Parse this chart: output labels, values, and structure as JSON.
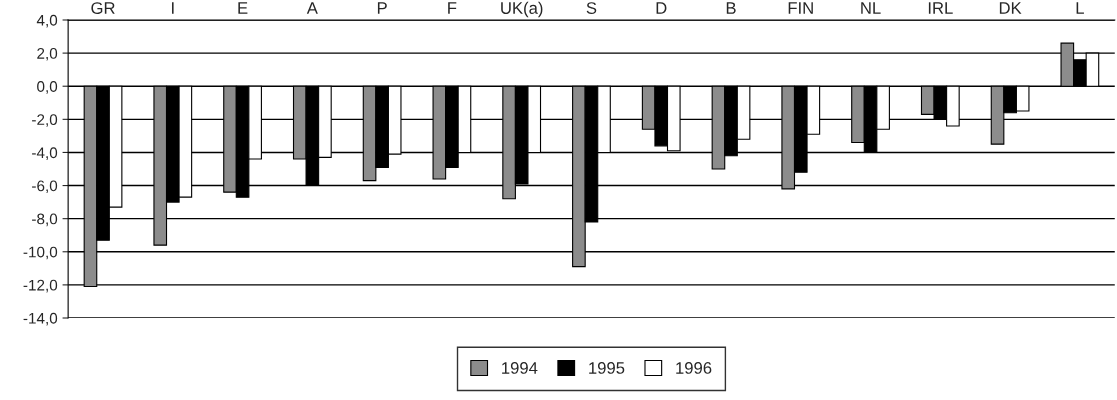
{
  "chart_data": {
    "type": "bar",
    "categories": [
      "GR",
      "I",
      "E",
      "A",
      "P",
      "F",
      "UK(a)",
      "S",
      "D",
      "B",
      "FIN",
      "NL",
      "IRL",
      "DK",
      "L"
    ],
    "series": [
      {
        "name": "1994",
        "color": "#8c8c8c",
        "values": [
          -12.1,
          -9.6,
          -6.4,
          -4.4,
          -5.7,
          -5.6,
          -6.8,
          -10.9,
          -2.6,
          -5.0,
          -6.2,
          -3.4,
          -1.7,
          -3.5,
          2.6
        ]
      },
      {
        "name": "1995",
        "color": "#000000",
        "values": [
          -9.3,
          -7.0,
          -6.7,
          -6.0,
          -4.9,
          -4.9,
          -5.9,
          -8.2,
          -3.6,
          -4.2,
          -5.2,
          -4.0,
          -2.0,
          -1.6,
          1.6
        ]
      },
      {
        "name": "1996",
        "color": "#ffffff",
        "values": [
          -7.3,
          -6.7,
          -4.4,
          -4.3,
          -4.1,
          -4.0,
          -4.0,
          -4.0,
          -3.9,
          -3.2,
          -2.9,
          -2.6,
          -2.4,
          -1.5,
          2.0
        ]
      }
    ],
    "ylim": [
      -14,
      4
    ],
    "yticks": [
      {
        "value": -14,
        "label": "-14,0"
      },
      {
        "value": -12,
        "label": "-12,0"
      },
      {
        "value": -10,
        "label": "-10,0"
      },
      {
        "value": -8,
        "label": "-8,0"
      },
      {
        "value": -6,
        "label": "-6,0"
      },
      {
        "value": -4,
        "label": "-4,0"
      },
      {
        "value": -2,
        "label": "-2,0"
      },
      {
        "value": 0,
        "label": "0,0"
      },
      {
        "value": 2,
        "label": "2,0"
      },
      {
        "value": 4,
        "label": "4,0"
      }
    ],
    "grid": "y",
    "legend": "bottom"
  }
}
